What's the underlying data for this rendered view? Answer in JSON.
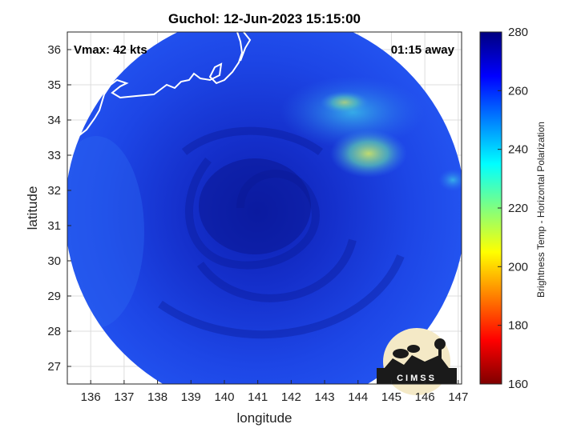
{
  "chart_data": {
    "type": "heatmap",
    "title": "Guchol: 12-Jun-2023 15:15:00",
    "xlabel": "longitude",
    "ylabel": "latitude",
    "xlim": [
      135.3,
      147.1
    ],
    "ylim": [
      26.5,
      36.5
    ],
    "xticks": [
      "136",
      "137",
      "138",
      "139",
      "140",
      "141",
      "142",
      "143",
      "144",
      "145",
      "146",
      "147"
    ],
    "yticks": [
      "27",
      "28",
      "29",
      "30",
      "31",
      "32",
      "33",
      "34",
      "35",
      "36"
    ],
    "grid": true,
    "annotations": {
      "vmax": "Vmax: 42 kts",
      "time_away": "01:15 away"
    },
    "storm_center": {
      "lon": 141.2,
      "lat": 31.5
    },
    "colorbar": {
      "label": "Brightness Temp - Horizontal Polarization",
      "range": [
        160,
        280
      ],
      "ticks": [
        "160",
        "180",
        "200",
        "220",
        "240",
        "260",
        "280"
      ],
      "colormap": [
        "#7f0000",
        "#ff0000",
        "#ff8000",
        "#ffff00",
        "#80ff80",
        "#00ffff",
        "#0080ff",
        "#0000ff",
        "#00007f"
      ]
    },
    "logo_text": "CIMSS",
    "background_colors": {
      "dominant": "#1a3ce6",
      "cold_core": "#0a1aa8",
      "warm_patch": "#8fd86a"
    }
  }
}
